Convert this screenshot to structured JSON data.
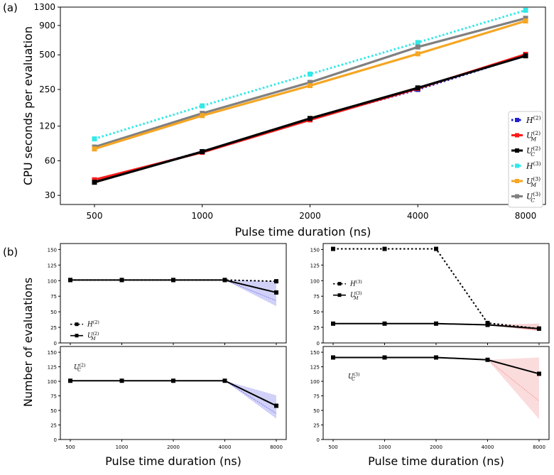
{
  "panel_labels": {
    "a": "(a)",
    "b": "(b)"
  },
  "chart_data": [
    {
      "id": "a",
      "type": "line",
      "xlabel": "Pulse time duration (ns)",
      "ylabel": "CPU seconds per evaluation",
      "x_scale": "log2",
      "y_scale": "log",
      "x": [
        500,
        1000,
        2000,
        4000,
        8000
      ],
      "x_ticks": [
        "500",
        "1000",
        "2000",
        "4000",
        "8000"
      ],
      "y_ticks": [
        30,
        60,
        120,
        250,
        500,
        900,
        1300
      ],
      "ylim": [
        25,
        1300
      ],
      "legend_position": "lower-right",
      "series": [
        {
          "name": "H(2)",
          "label_base": "H",
          "label_sup": "(2)",
          "label_sub": "",
          "color": "#1f1fd0",
          "style": "dotted",
          "values": [
            40,
            72,
            138,
            250,
            495
          ]
        },
        {
          "name": "U_M(2)",
          "label_base": "U",
          "label_sup": "(2)",
          "label_sub": "M",
          "color": "#ff1a1a",
          "style": "solid",
          "values": [
            41,
            71,
            136,
            255,
            505
          ]
        },
        {
          "name": "U_C(2)",
          "label_base": "U",
          "label_sup": "(2)",
          "label_sub": "C",
          "color": "#000000",
          "style": "solid",
          "values": [
            39,
            72,
            140,
            258,
            490
          ]
        },
        {
          "name": "H(3)",
          "label_base": "H",
          "label_sup": "(3)",
          "label_sub": "",
          "color": "#33e8e8",
          "style": "dotted",
          "values": [
            93,
            180,
            340,
            640,
            1220
          ]
        },
        {
          "name": "U_M(3)",
          "label_base": "U",
          "label_sup": "(3)",
          "label_sub": "M",
          "color": "#f5a623",
          "style": "solid",
          "values": [
            76,
            148,
            270,
            510,
            985
          ]
        },
        {
          "name": "U_C(3)",
          "label_base": "U",
          "label_sup": "(3)",
          "label_sub": "C",
          "color": "#808080",
          "style": "solid",
          "values": [
            79,
            155,
            288,
            585,
            1040
          ]
        }
      ]
    },
    {
      "id": "b1",
      "type": "line",
      "xlabel": "",
      "ylabel": "Number of evaluations",
      "ylim": [
        0,
        155
      ],
      "y_ticks": [
        0,
        25,
        50,
        75,
        100,
        125,
        150
      ],
      "x_ticks": [],
      "legend": [
        {
          "base": "H",
          "sup": "(2)",
          "sub": "",
          "style": "dotted"
        },
        {
          "base": "U",
          "sup": "(2)",
          "sub": "M",
          "style": "solid"
        }
      ],
      "series": [
        {
          "name": "H(2)",
          "style": "dotted",
          "values": [
            101,
            101,
            101,
            101,
            99
          ]
        },
        {
          "name": "U_M(2)",
          "style": "solid",
          "values": [
            101,
            101,
            101,
            101,
            81
          ]
        }
      ],
      "band_color": "#5a5ae6"
    },
    {
      "id": "b2",
      "type": "line",
      "xlabel": "",
      "ylabel": "",
      "ylim": [
        0,
        155
      ],
      "y_ticks": [
        0,
        25,
        50,
        75,
        100,
        125,
        150
      ],
      "x_ticks": [],
      "legend": [
        {
          "base": "H",
          "sup": "(3)",
          "sub": "",
          "style": "dotted"
        },
        {
          "base": "U",
          "sup": "(3)",
          "sub": "M",
          "style": "solid"
        }
      ],
      "series": [
        {
          "name": "H(3)",
          "style": "dotted",
          "values": [
            151,
            151,
            151,
            32,
            23
          ]
        },
        {
          "name": "U_M(3)",
          "style": "solid",
          "values": [
            31,
            31,
            31,
            29,
            23
          ]
        }
      ],
      "band_color": "#e06060"
    },
    {
      "id": "b3",
      "type": "line",
      "xlabel": "Pulse time duration (ns)",
      "ylabel": "",
      "ylim": [
        0,
        155
      ],
      "y_ticks": [
        0,
        25,
        50,
        75,
        100,
        125,
        150
      ],
      "x_ticks": [
        "500",
        "1000",
        "2000",
        "4000",
        "8000"
      ],
      "legend": [
        {
          "base": "U",
          "sup": "(2)",
          "sub": "C",
          "style": "none"
        }
      ],
      "series": [
        {
          "name": "U_C(2)",
          "style": "solid",
          "values": [
            101,
            101,
            101,
            101,
            58
          ]
        }
      ],
      "band_color": "#5a5ae6"
    },
    {
      "id": "b4",
      "type": "line",
      "xlabel": "Pulse time duration (ns)",
      "ylabel": "",
      "ylim": [
        0,
        155
      ],
      "y_ticks": [
        0,
        25,
        50,
        75,
        100,
        125,
        150
      ],
      "x_ticks": [
        "500",
        "1000",
        "2000",
        "4000",
        "8000"
      ],
      "legend": [
        {
          "base": "U",
          "sup": "(3)",
          "sub": "C",
          "style": "none"
        }
      ],
      "series": [
        {
          "name": "U_C(3)",
          "style": "solid",
          "values": [
            141,
            141,
            141,
            137,
            113
          ]
        }
      ],
      "band_color": "#f08080"
    }
  ]
}
